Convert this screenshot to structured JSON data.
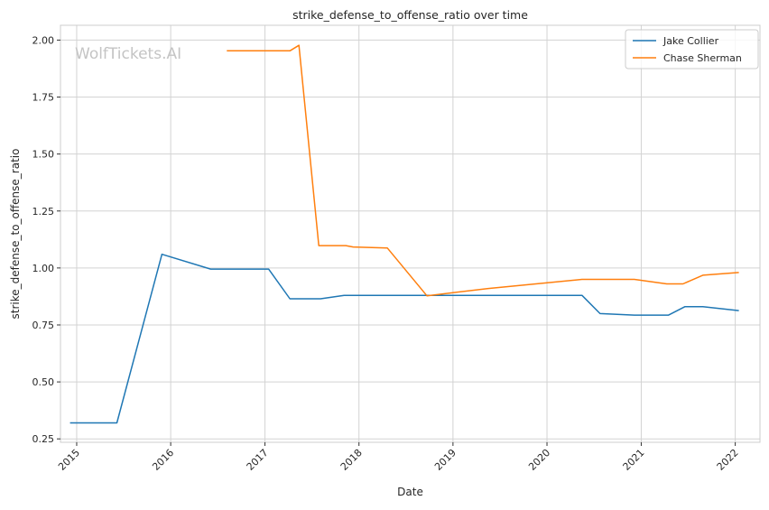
{
  "chart_data": {
    "type": "line",
    "title": "strike_defense_to_offense_ratio over time",
    "xlabel": "Date",
    "ylabel": "strike_defense_to_offense_ratio",
    "watermark": "WolfTickets.AI",
    "xlim": [
      "2014-10-30",
      "2022-04-07"
    ],
    "ylim": [
      0.235,
      2.065
    ],
    "x_ticks": [
      "2015",
      "2016",
      "2017",
      "2018",
      "2019",
      "2020",
      "2021",
      "2022"
    ],
    "y_ticks": [
      "0.25",
      "0.50",
      "0.75",
      "1.00",
      "1.25",
      "1.50",
      "1.75",
      "2.00"
    ],
    "grid": true,
    "legend_position": "top-right",
    "series": [
      {
        "name": "Jake Collier",
        "color": "#1f77b4",
        "points": [
          {
            "x": "2014-12-06",
            "y": 0.32
          },
          {
            "x": "2015-06-06",
            "y": 0.32
          },
          {
            "x": "2015-11-28",
            "y": 1.06
          },
          {
            "x": "2016-06-04",
            "y": 0.995
          },
          {
            "x": "2016-10-01",
            "y": 0.995
          },
          {
            "x": "2017-01-15",
            "y": 0.995
          },
          {
            "x": "2017-04-08",
            "y": 0.865
          },
          {
            "x": "2017-08-05",
            "y": 0.865
          },
          {
            "x": "2017-11-04",
            "y": 0.88
          },
          {
            "x": "2018-04-14",
            "y": 0.88
          },
          {
            "x": "2018-09-22",
            "y": 0.88
          },
          {
            "x": "2019-09-01",
            "y": 0.88
          },
          {
            "x": "2020-05-16",
            "y": 0.88
          },
          {
            "x": "2020-07-25",
            "y": 0.8
          },
          {
            "x": "2020-12-05",
            "y": 0.793
          },
          {
            "x": "2021-04-17",
            "y": 0.793
          },
          {
            "x": "2021-06-19",
            "y": 0.83
          },
          {
            "x": "2021-08-28",
            "y": 0.83
          },
          {
            "x": "2022-01-15",
            "y": 0.813
          }
        ]
      },
      {
        "name": "Chase Sherman",
        "color": "#ff7f0e",
        "points": [
          {
            "x": "2016-08-06",
            "y": 1.953
          },
          {
            "x": "2017-04-08",
            "y": 1.953
          },
          {
            "x": "2017-05-13",
            "y": 1.977
          },
          {
            "x": "2017-07-29",
            "y": 1.098
          },
          {
            "x": "2017-11-11",
            "y": 1.098
          },
          {
            "x": "2017-12-09",
            "y": 1.092
          },
          {
            "x": "2018-04-21",
            "y": 1.088
          },
          {
            "x": "2018-09-22",
            "y": 0.878
          },
          {
            "x": "2019-05-18",
            "y": 0.91
          },
          {
            "x": "2020-05-16",
            "y": 0.95
          },
          {
            "x": "2020-12-05",
            "y": 0.95
          },
          {
            "x": "2021-04-10",
            "y": 0.93
          },
          {
            "x": "2021-06-12",
            "y": 0.93
          },
          {
            "x": "2021-08-28",
            "y": 0.968
          },
          {
            "x": "2022-01-15",
            "y": 0.98
          }
        ]
      }
    ]
  }
}
